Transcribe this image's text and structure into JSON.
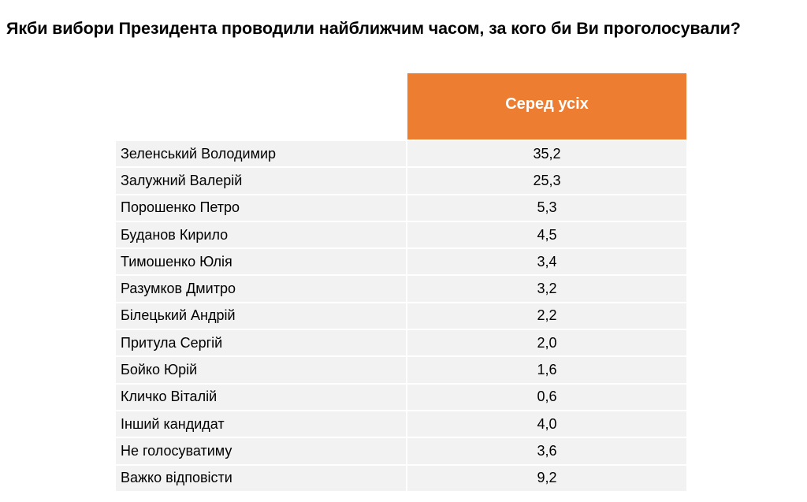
{
  "title": "Якби вибори Президента проводили найближчим часом, за кого би Ви проголосували?",
  "table": {
    "column_header": "Серед усіх",
    "header_color": "#ED7D31",
    "rows": [
      {
        "name": "Зеленський Володимир",
        "value": "35,2"
      },
      {
        "name": "Залужний Валерій",
        "value": "25,3"
      },
      {
        "name": "Порошенко Петро",
        "value": "5,3"
      },
      {
        "name": "Буданов Кирило",
        "value": "4,5"
      },
      {
        "name": "Тимошенко Юлія",
        "value": "3,4"
      },
      {
        "name": "Разумков Дмитро",
        "value": "3,2"
      },
      {
        "name": "Білецький Андрій",
        "value": "2,2"
      },
      {
        "name": "Притула Сергій",
        "value": "2,0"
      },
      {
        "name": "Бойко Юрій",
        "value": "1,6"
      },
      {
        "name": "Кличко Віталій",
        "value": "0,6"
      },
      {
        "name": "Інший кандидат",
        "value": "4,0"
      },
      {
        "name": "Не голосуватиму",
        "value": "3,6"
      },
      {
        "name": "Важко відповісти",
        "value": "9,2"
      }
    ]
  }
}
